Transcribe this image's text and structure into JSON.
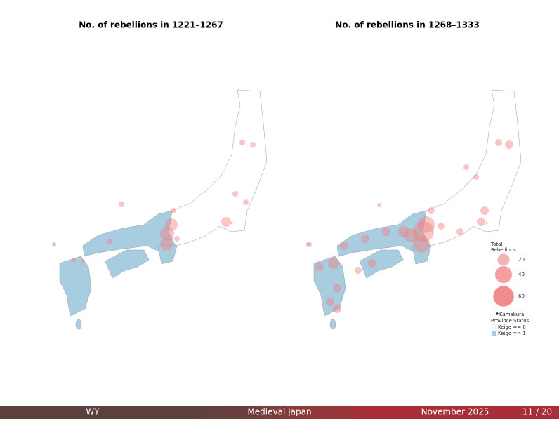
{
  "maps": [
    {
      "title": "No. of rebellions in 1221–1267"
    },
    {
      "title": "No. of rebellions in 1268–1333"
    }
  ],
  "legend": {
    "title_lines": [
      "Total",
      "Rebellions"
    ],
    "sizes": [
      20,
      40,
      60
    ],
    "kamakura": "Kamakura",
    "status_title": "Province Status",
    "status": [
      "Keigo == 0",
      "Keigo == 1"
    ]
  },
  "footer": {
    "author": "WY",
    "title": "Medieval Japan",
    "date": "November 2025",
    "page": "11 / 20"
  }
}
